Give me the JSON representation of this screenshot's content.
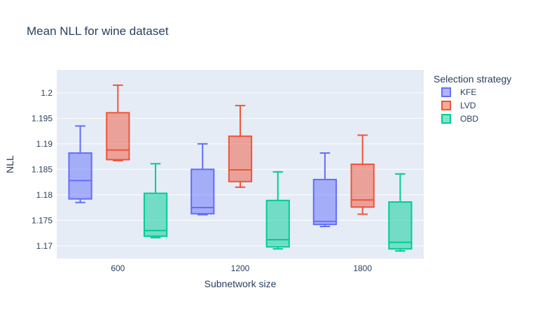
{
  "chart_data": {
    "type": "box",
    "title": "Mean NLL for wine dataset",
    "xlabel": "Subnetwork size",
    "ylabel": "NLL",
    "categories": [
      "600",
      "1200",
      "1800"
    ],
    "ylim": [
      1.1675,
      1.2045
    ],
    "yticks": [
      1.17,
      1.175,
      1.18,
      1.185,
      1.19,
      1.195,
      1.2
    ],
    "ytick_labels": [
      "1.17",
      "1.175",
      "1.18",
      "1.185",
      "1.19",
      "1.195",
      "1.2"
    ],
    "grid": true,
    "legend": {
      "title": "Selection strategy",
      "placement": "right"
    },
    "series": [
      {
        "name": "KFE",
        "color": "#636efa",
        "boxes": [
          {
            "min": 1.1785,
            "q1": 1.1792,
            "median": 1.1828,
            "q3": 1.1882,
            "max": 1.1935
          },
          {
            "min": 1.1761,
            "q1": 1.1763,
            "median": 1.1775,
            "q3": 1.185,
            "max": 1.19
          },
          {
            "min": 1.1738,
            "q1": 1.1742,
            "median": 1.1748,
            "q3": 1.183,
            "max": 1.1882
          }
        ]
      },
      {
        "name": "LVD",
        "color": "#ef553b",
        "boxes": [
          {
            "min": 1.1867,
            "q1": 1.1869,
            "median": 1.1888,
            "q3": 1.1961,
            "max": 1.2015
          },
          {
            "min": 1.1815,
            "q1": 1.1826,
            "median": 1.1849,
            "q3": 1.1915,
            "max": 1.1975
          },
          {
            "min": 1.1762,
            "q1": 1.1776,
            "median": 1.179,
            "q3": 1.186,
            "max": 1.1917
          }
        ]
      },
      {
        "name": "OBD",
        "color": "#00cc96",
        "boxes": [
          {
            "min": 1.1716,
            "q1": 1.1719,
            "median": 1.173,
            "q3": 1.1803,
            "max": 1.1861
          },
          {
            "min": 1.1694,
            "q1": 1.1698,
            "median": 1.1712,
            "q3": 1.1789,
            "max": 1.1845
          },
          {
            "min": 1.169,
            "q1": 1.1694,
            "median": 1.1707,
            "q3": 1.1786,
            "max": 1.1841
          }
        ]
      }
    ]
  }
}
